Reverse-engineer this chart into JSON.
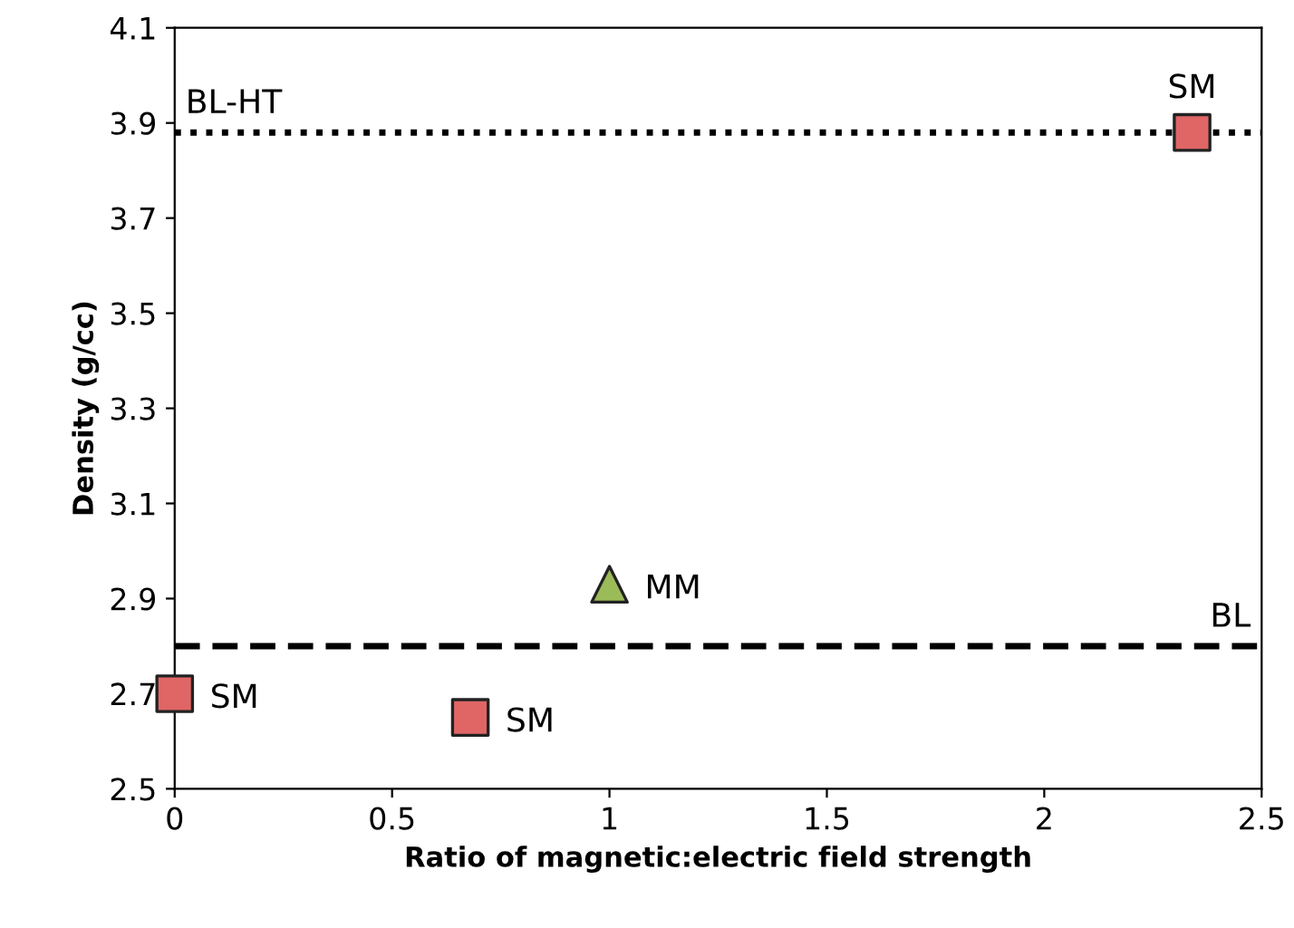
{
  "chart_data": {
    "type": "scatter",
    "xlabel": "Ratio of magnetic:electric field strength",
    "ylabel": "Density (g/cc)",
    "series": [
      {
        "color": "#e06666",
        "marker": "square",
        "x": [
          0,
          0.68,
          2.34
        ],
        "values": [
          2.7,
          2.65,
          3.88
        ]
      },
      {
        "color": "#9bbb59",
        "marker": "triangle",
        "x": [
          1.0
        ],
        "values": [
          2.93
        ]
      }
    ],
    "annotations": [
      {
        "text": "SM",
        "x": 0,
        "y": 2.7
      },
      {
        "text": "SM",
        "x": 0.68,
        "y": 2.65
      },
      {
        "text": "MM",
        "x": 1.0,
        "y": 2.93
      },
      {
        "text": "SM",
        "x": 2.34,
        "y": 3.88
      }
    ],
    "ref_lines": [
      {
        "axis": "y",
        "value": 3.88,
        "label": "BL-HT",
        "color": "#000000",
        "line_style": "dotted"
      },
      {
        "axis": "y",
        "value": 2.8,
        "label": "BL",
        "color": "#000000",
        "line_style": "dashed"
      }
    ],
    "xlim": [
      0,
      2.5
    ],
    "xticks": [
      0,
      0.5,
      1,
      1.5,
      2,
      2.5
    ],
    "ylim": [
      2.5,
      4.1
    ],
    "yticks": [
      2.5,
      2.7,
      2.9,
      3.1,
      3.3,
      3.5,
      3.7,
      3.9,
      4.1
    ],
    "grid": false,
    "legend": false
  }
}
